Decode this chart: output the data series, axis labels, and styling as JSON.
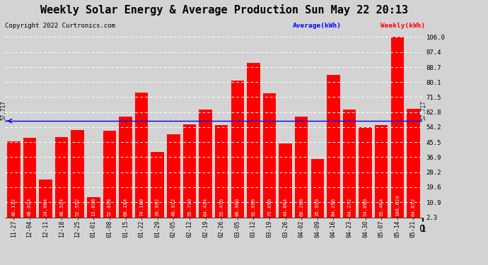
{
  "title": "Weekly Solar Energy & Average Production Sun May 22 20:13",
  "copyright": "Copyright 2022 Curtronics.com",
  "categories": [
    "11-27",
    "12-04",
    "12-11",
    "12-18",
    "12-25",
    "01-01",
    "01-08",
    "01-15",
    "01-22",
    "01-29",
    "02-05",
    "02-12",
    "02-19",
    "02-26",
    "03-05",
    "03-12",
    "03-19",
    "03-26",
    "04-02",
    "04-09",
    "04-16",
    "04-23",
    "04-30",
    "05-07",
    "05-14",
    "05-21"
  ],
  "values": [
    46.132,
    48.024,
    24.084,
    48.524,
    52.552,
    13.828,
    52.028,
    60.184,
    74.188,
    39.992,
    49.912,
    55.72,
    64.424,
    55.476,
    80.9,
    91.096,
    73.696,
    44.864,
    60.288,
    35.92,
    84.296,
    64.272,
    54.08,
    55.464,
    106.024,
    64.672
  ],
  "value_labels": [
    "46.132",
    "48.024",
    "24.084",
    "48.524",
    "52.552",
    "13.828",
    "52.028",
    "60.184",
    "74.188",
    "39.992",
    "49.912",
    "55.720",
    "64.424",
    "55.476",
    "80.900",
    "91.096",
    "73.696",
    "44.864",
    "60.288",
    "35.920",
    "84.296",
    "64.272",
    "54.080",
    "55.464",
    "106.024",
    "64.672"
  ],
  "average": 57.717,
  "bar_color": "#ff0000",
  "avg_line_color": "#0000ff",
  "background_color": "#d3d3d3",
  "plot_bg_color": "#d3d3d3",
  "grid_color": "#c8c8c8",
  "ylim_min": 2.3,
  "ylim_max": 106.0,
  "yticks": [
    2.3,
    10.9,
    19.6,
    28.2,
    36.9,
    45.5,
    54.2,
    62.8,
    71.5,
    80.1,
    88.7,
    97.4,
    106.0
  ],
  "title_fontsize": 11,
  "copyright_fontsize": 6.5,
  "bar_label_fontsize": 5.2,
  "legend_avg_label": "Average(kWh)",
  "legend_weekly_label": "Weekly(kWh)",
  "avg_label": "57.717"
}
